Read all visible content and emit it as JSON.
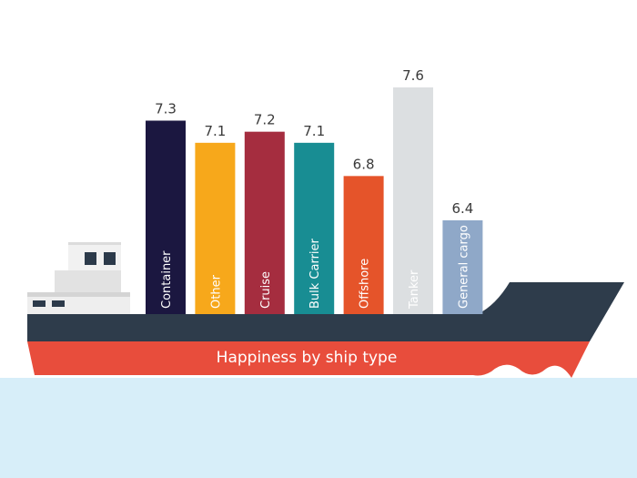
{
  "chart_data": {
    "type": "bar",
    "title": "Happiness by ship type",
    "categories": [
      "Container",
      "Other",
      "Cruise",
      "Bulk Carrier",
      "Offshore",
      "Tanker",
      "General cargo"
    ],
    "values": [
      7.3,
      7.1,
      7.2,
      7.1,
      6.8,
      7.6,
      6.4
    ],
    "colors": [
      "#1b1740",
      "#f7a81b",
      "#a52d3f",
      "#188d93",
      "#e5542a",
      "#dcdfe1",
      "#8fa8c8"
    ]
  }
}
